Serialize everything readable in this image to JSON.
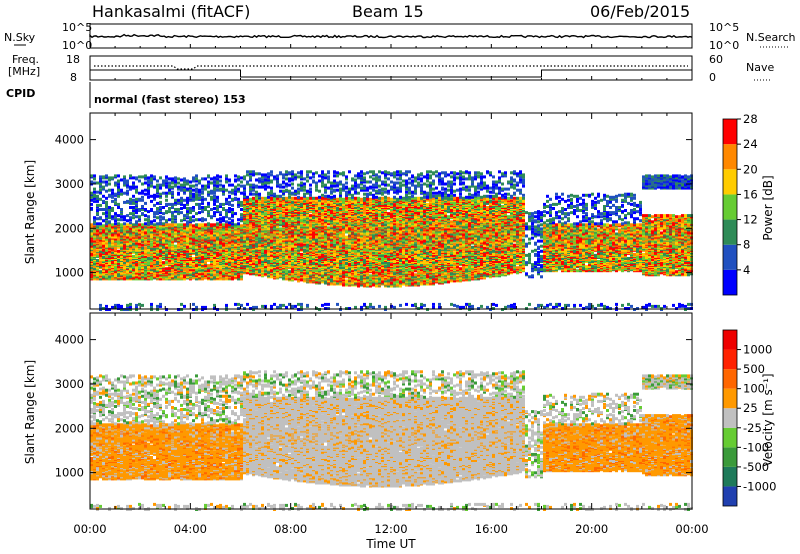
{
  "header": {
    "station": "Hankasalmi (fitACF)",
    "beam": "Beam 15",
    "date": "06/Feb/2015"
  },
  "summary": {
    "nsky_label": "N.Sky",
    "nsearch_label": "N.Search",
    "noise_ticks": [
      "10^5",
      "10^0"
    ],
    "freq_label_1": "Freq.",
    "freq_label_2": "[MHz]",
    "freq_ticks": [
      "18",
      "8"
    ],
    "nave_label": "Nave",
    "nave_ticks": [
      "60",
      "0"
    ],
    "cpid_label": "CPID",
    "cpid_text": "normal (fast stereo) 153"
  },
  "chart_data": [
    {
      "type": "heatmap",
      "title": "Power",
      "ylabel": "Slant Range [km]",
      "xlabel": "Time UT",
      "x_ticks": [
        "00:00",
        "04:00",
        "08:00",
        "12:00",
        "16:00",
        "20:00",
        "00:00"
      ],
      "y_ticks": [
        "1000",
        "2000",
        "3000",
        "4000"
      ],
      "xlim_hours": [
        0,
        24
      ],
      "ylim_km": [
        180,
        4600
      ],
      "colorbar": {
        "label": "Power [dB]",
        "ticks": [
          "4",
          "8",
          "12",
          "16",
          "20",
          "24",
          "28"
        ],
        "colors": [
          "#0000ff",
          "#2050c0",
          "#2e8b57",
          "#66cc33",
          "#ffcc00",
          "#ff8800",
          "#ff0000"
        ]
      }
    },
    {
      "type": "heatmap",
      "title": "Velocity",
      "ylabel": "Slant Range [km]",
      "xlabel": "Time UT",
      "x_ticks": [
        "00:00",
        "04:00",
        "08:00",
        "12:00",
        "16:00",
        "20:00",
        "00:00"
      ],
      "y_ticks": [
        "1000",
        "2000",
        "3000",
        "4000"
      ],
      "xlim_hours": [
        0,
        24
      ],
      "ylim_km": [
        180,
        4600
      ],
      "colorbar": {
        "label": "Velocity [m s⁻¹]",
        "ticks": [
          "1000",
          "500",
          "100",
          "25",
          "-25",
          "-100",
          "-500",
          "-1000"
        ],
        "colors": [
          "#2040b0",
          "#1e7a5a",
          "#3a9a3a",
          "#66cc33",
          "#c0c0c0",
          "#ff9900",
          "#ff6600",
          "#ff2200",
          "#ee0000"
        ]
      }
    }
  ],
  "xlabel": "Time UT"
}
